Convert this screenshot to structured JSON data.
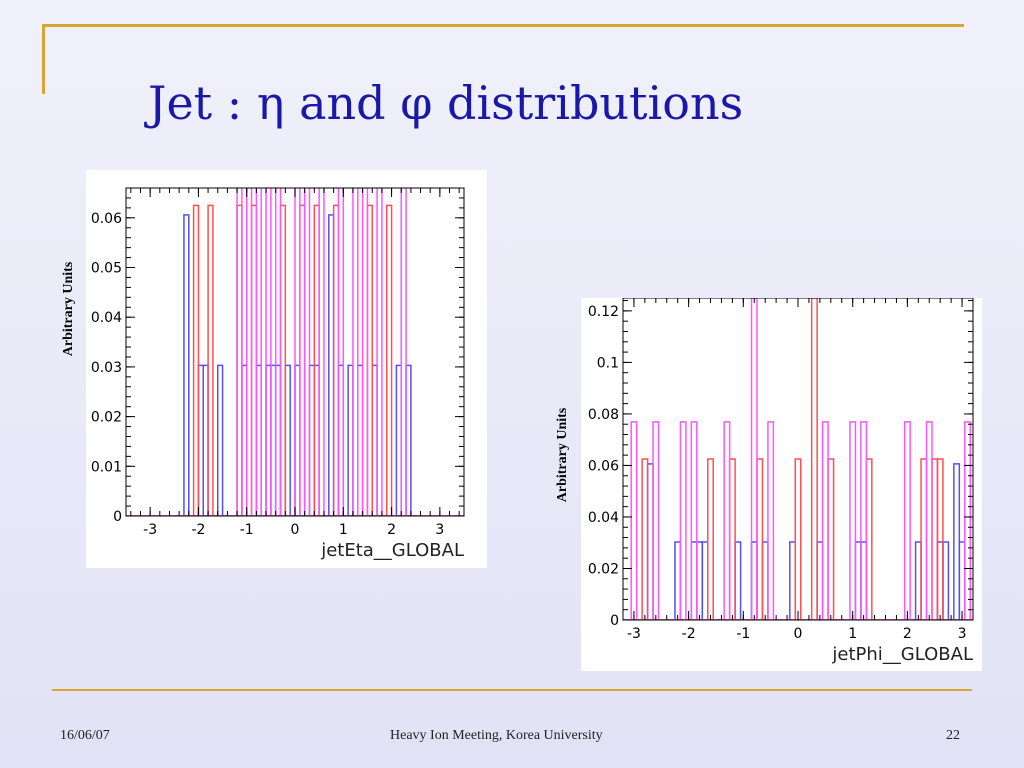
{
  "slide": {
    "title": "Jet : η and φ distributions",
    "footer_date": "16/06/07",
    "footer_center": "Heavy Ion Meeting, Korea University",
    "footer_page": "22"
  },
  "colors": {
    "background": "#e6e6f8",
    "title": "#1a18a8",
    "accent_lines": "#d7a533",
    "series_blue": "#5050ff",
    "series_red": "#ff5050",
    "series_magenta": "#ff55ff"
  },
  "chart_data": [
    {
      "type": "histogram",
      "xlabel": "jetEta__GLOBAL",
      "ylabel": "Arbitrary Units",
      "xlim": [
        -3.5,
        3.5
      ],
      "ylim": [
        0,
        0.066
      ],
      "xticks": [
        -3,
        -2,
        -1,
        0,
        1,
        2,
        3
      ],
      "xtick_labels": [
        "-3",
        "-2",
        "-1",
        "0",
        "1",
        "2",
        "3"
      ],
      "yticks": [
        0,
        0.01,
        0.02,
        0.03,
        0.04,
        0.05,
        0.06
      ],
      "ytick_labels": [
        "0",
        "0.01",
        "0.02",
        "0.03",
        "0.04",
        "0.05",
        "0.06"
      ],
      "grid": false,
      "series": [
        {
          "color": "#5050ff",
          "bins": [
            [
              -2.3,
              -2.2,
              0.0606
            ],
            [
              -2.0,
              -1.9,
              0.0303
            ],
            [
              -1.9,
              -1.8,
              0.0303
            ],
            [
              -1.6,
              -1.5,
              0.0303
            ],
            [
              -1.1,
              -1.0,
              0.0303
            ],
            [
              -0.8,
              -0.7,
              0.0303
            ],
            [
              -0.6,
              -0.5,
              0.0303
            ],
            [
              -0.5,
              -0.4,
              0.0303
            ],
            [
              -0.4,
              -0.3,
              0.0303
            ],
            [
              -0.2,
              -0.1,
              0.0303
            ],
            [
              0.0,
              0.1,
              0.0303
            ],
            [
              0.3,
              0.4,
              0.0303
            ],
            [
              0.4,
              0.5,
              0.0303
            ],
            [
              0.7,
              0.8,
              0.0606
            ],
            [
              0.9,
              1.0,
              0.0303
            ],
            [
              1.1,
              1.2,
              0.0303
            ],
            [
              1.3,
              1.4,
              0.0303
            ],
            [
              1.6,
              1.7,
              0.0303
            ],
            [
              2.1,
              2.2,
              0.0303
            ],
            [
              2.3,
              2.4,
              0.0303
            ]
          ]
        },
        {
          "color": "#ff5050",
          "bins": [
            [
              -2.1,
              -2.0,
              0.0625
            ],
            [
              -1.8,
              -1.7,
              0.0625
            ],
            [
              -1.2,
              -1.1,
              0.0625
            ],
            [
              -0.9,
              -0.8,
              0.0625
            ],
            [
              -0.3,
              -0.2,
              0.0625
            ],
            [
              0.1,
              0.2,
              0.0625
            ],
            [
              0.4,
              0.5,
              0.0625
            ],
            [
              0.8,
              0.9,
              0.0625
            ],
            [
              1.5,
              1.6,
              0.0625
            ],
            [
              1.9,
              2.0,
              0.0625
            ]
          ]
        },
        {
          "color": "#ff55ff",
          "bins": [
            [
              -1.2,
              -1.1,
              0.0667
            ],
            [
              -1.0,
              -0.9,
              0.0667
            ],
            [
              -0.8,
              -0.7,
              0.0667
            ],
            [
              -0.6,
              -0.5,
              0.0667
            ],
            [
              -0.4,
              -0.3,
              0.0667
            ],
            [
              0.0,
              0.1,
              0.0667
            ],
            [
              0.2,
              0.3,
              0.0667
            ],
            [
              0.5,
              0.6,
              0.0667
            ],
            [
              0.9,
              1.0,
              0.0667
            ],
            [
              1.2,
              1.3,
              0.0667
            ],
            [
              1.4,
              1.5,
              0.0667
            ],
            [
              1.7,
              1.8,
              0.0667
            ],
            [
              2.2,
              2.3,
              0.0667
            ]
          ]
        }
      ]
    },
    {
      "type": "histogram",
      "xlabel": "jetPhi__GLOBAL",
      "ylabel": "Arbitrary Units",
      "xlim": [
        -3.2,
        3.2
      ],
      "ylim": [
        0,
        0.125
      ],
      "xticks": [
        -3,
        -2,
        -1,
        0,
        1,
        2,
        3
      ],
      "xtick_labels": [
        "-3",
        "-2",
        "-1",
        "0",
        "1",
        "2",
        "3"
      ],
      "yticks": [
        0,
        0.02,
        0.04,
        0.06,
        0.08,
        0.1,
        0.12
      ],
      "ytick_labels": [
        "0",
        "0.02",
        "0.04",
        "0.06",
        "0.08",
        "0.1",
        "0.12"
      ],
      "grid": false,
      "series": [
        {
          "color": "#5050ff",
          "bins": [
            [
              -2.75,
              -2.65,
              0.0606
            ],
            [
              -2.25,
              -2.15,
              0.0303
            ],
            [
              -1.95,
              -1.85,
              0.0303
            ],
            [
              -1.85,
              -1.75,
              0.0303
            ],
            [
              -1.75,
              -1.65,
              0.0303
            ],
            [
              -1.15,
              -1.05,
              0.0303
            ],
            [
              -0.85,
              -0.75,
              0.0303
            ],
            [
              -0.65,
              -0.55,
              0.0303
            ],
            [
              -0.15,
              -0.05,
              0.0303
            ],
            [
              0.35,
              0.45,
              0.0303
            ],
            [
              1.05,
              1.15,
              0.0303
            ],
            [
              1.15,
              1.25,
              0.0303
            ],
            [
              2.15,
              2.25,
              0.0303
            ],
            [
              2.55,
              2.65,
              0.0303
            ],
            [
              2.65,
              2.75,
              0.0303
            ],
            [
              2.85,
              2.95,
              0.0606
            ],
            [
              2.95,
              3.05,
              0.0303
            ]
          ]
        },
        {
          "color": "#ff5050",
          "bins": [
            [
              -2.85,
              -2.75,
              0.0625
            ],
            [
              -1.65,
              -1.55,
              0.0625
            ],
            [
              -1.25,
              -1.15,
              0.0625
            ],
            [
              -0.75,
              -0.65,
              0.0625
            ],
            [
              -0.05,
              0.05,
              0.0625
            ],
            [
              0.25,
              0.35,
              0.125
            ],
            [
              0.55,
              0.65,
              0.0625
            ],
            [
              1.25,
              1.35,
              0.0625
            ],
            [
              2.25,
              2.35,
              0.0625
            ],
            [
              2.45,
              2.55,
              0.0625
            ],
            [
              2.55,
              2.65,
              0.0625
            ]
          ]
        },
        {
          "color": "#ff55ff",
          "bins": [
            [
              -3.05,
              -2.95,
              0.0769
            ],
            [
              -2.65,
              -2.55,
              0.0769
            ],
            [
              -2.15,
              -2.05,
              0.0769
            ],
            [
              -1.95,
              -1.85,
              0.0769
            ],
            [
              -1.35,
              -1.25,
              0.0769
            ],
            [
              -0.85,
              -0.75,
              0.125
            ],
            [
              -0.55,
              -0.45,
              0.0769
            ],
            [
              0.45,
              0.55,
              0.0769
            ],
            [
              0.95,
              1.05,
              0.0769
            ],
            [
              1.15,
              1.25,
              0.0769
            ],
            [
              1.95,
              2.05,
              0.0769
            ],
            [
              2.35,
              2.45,
              0.0769
            ],
            [
              3.05,
              3.15,
              0.0769
            ]
          ]
        }
      ]
    }
  ]
}
